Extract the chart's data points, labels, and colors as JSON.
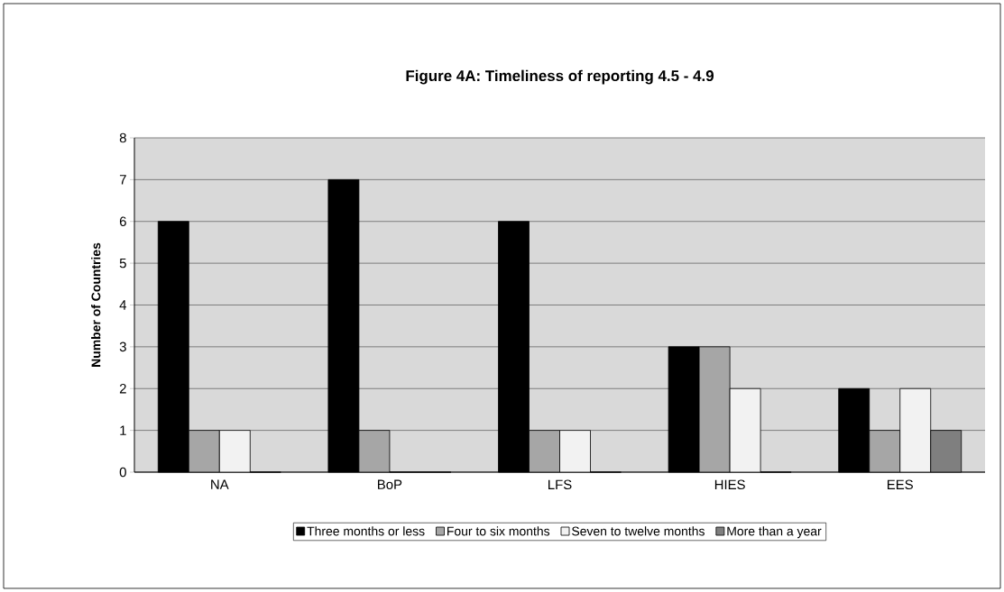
{
  "chart_data": {
    "type": "bar",
    "title": "Figure 4A:  Timeliness of reporting 4.5 - 4.9",
    "ylabel": "Number of Countries",
    "categories": [
      "NA",
      "BoP",
      "LFS",
      "HIES",
      "EES"
    ],
    "series": [
      {
        "name": "Three months or less",
        "color": "#000000",
        "values": [
          6,
          7,
          6,
          3,
          2
        ]
      },
      {
        "name": "Four to six months",
        "color": "#a6a6a6",
        "values": [
          1,
          1,
          1,
          3,
          1
        ]
      },
      {
        "name": "Seven to twelve months",
        "color": "#f2f2f2",
        "values": [
          1,
          0,
          1,
          2,
          2
        ]
      },
      {
        "name": "More than a year",
        "color": "#7f7f7f",
        "values": [
          0,
          0,
          0,
          0,
          1
        ]
      }
    ],
    "ylim": [
      0,
      8
    ],
    "yticks": [
      0,
      1,
      2,
      3,
      4,
      5,
      6,
      7,
      8
    ],
    "grid": "y",
    "legend": "bottom"
  }
}
